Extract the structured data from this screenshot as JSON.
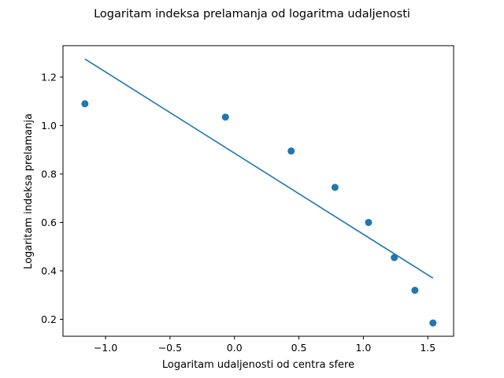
{
  "chart_data": {
    "type": "scatter",
    "title": "Logaritam indeksa prelamanja od logaritma udaljenosti",
    "xlabel": "Logaritam udaljenosti od centra sfere",
    "ylabel": "Logaritam indeksa prelamanja",
    "xlim": [
      -1.33,
      1.7
    ],
    "ylim": [
      0.13,
      1.33
    ],
    "xticks": [
      -1.0,
      -0.5,
      0.0,
      0.5,
      1.0,
      1.5
    ],
    "xtick_labels": [
      "−1.0",
      "−0.5",
      "0.0",
      "0.5",
      "1.0",
      "1.5"
    ],
    "yticks": [
      0.2,
      0.4,
      0.6,
      0.8,
      1.0,
      1.2
    ],
    "ytick_labels": [
      "0.2",
      "0.4",
      "0.6",
      "0.8",
      "1.0",
      "1.2"
    ],
    "grid": false,
    "color": "#1f77b4",
    "points": {
      "x": [
        -1.16,
        -0.07,
        0.44,
        0.78,
        1.04,
        1.24,
        1.4,
        1.54
      ],
      "y": [
        1.09,
        1.035,
        0.895,
        0.745,
        0.6,
        0.455,
        0.32,
        0.185
      ]
    },
    "fit_line": {
      "x": [
        -1.16,
        1.54
      ],
      "y": [
        1.275,
        0.37
      ]
    }
  }
}
